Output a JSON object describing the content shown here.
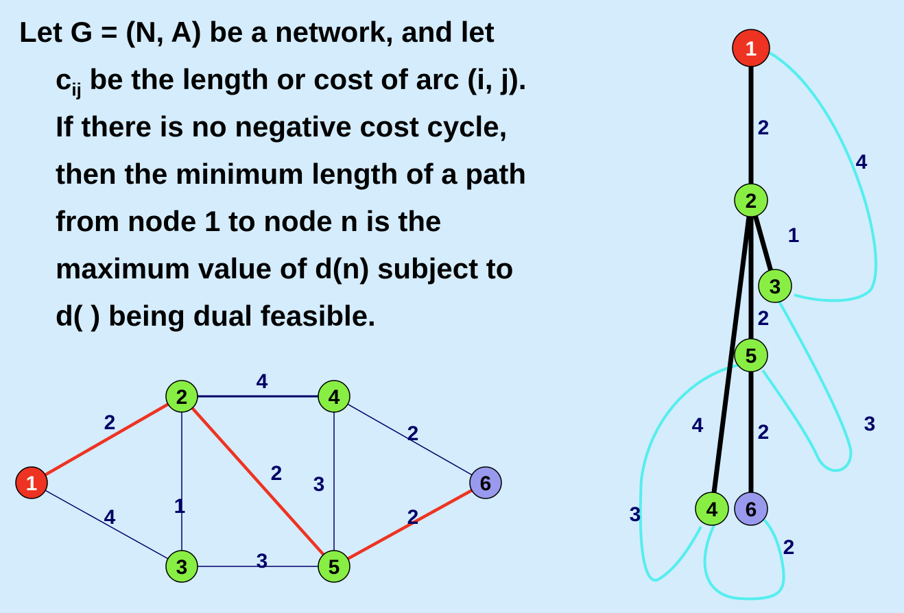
{
  "text": {
    "line1": "Let G = (N, A) be a network, and let",
    "line2_pre": "c",
    "line2_sub": "ij",
    "line2_post": " be the length or cost of arc (i, j).",
    "line3": "If there is no negative cost cycle,",
    "line4": "then the minimum length of a path",
    "line5": "from node 1 to node n is the",
    "line6": "maximum value of d(n) subject to",
    "line7": "d( ) being dual feasible."
  },
  "colors": {
    "background": "#d4ecfc",
    "source_node": "#ee3322",
    "regular_node": "#88ee44",
    "target_node": "#9999ee",
    "red_edge": "#ee3322",
    "blue_edge": "#000066",
    "label": "#000066",
    "tree_edge": "#000000",
    "cyan_edge": "#55eeee"
  },
  "network": {
    "nodes": [
      {
        "id": "1",
        "label": "1",
        "kind": "source"
      },
      {
        "id": "2",
        "label": "2",
        "kind": "regular"
      },
      {
        "id": "3",
        "label": "3",
        "kind": "regular"
      },
      {
        "id": "4",
        "label": "4",
        "kind": "regular"
      },
      {
        "id": "5",
        "label": "5",
        "kind": "regular"
      },
      {
        "id": "6",
        "label": "6",
        "kind": "target"
      }
    ],
    "edges": [
      {
        "from": "1",
        "to": "2",
        "cost": "2",
        "style": "red"
      },
      {
        "from": "1",
        "to": "3",
        "cost": "4",
        "style": "thin"
      },
      {
        "from": "2",
        "to": "3",
        "cost": "1",
        "style": "thin"
      },
      {
        "from": "2",
        "to": "4",
        "cost": "4",
        "style": "blue"
      },
      {
        "from": "2",
        "to": "5",
        "cost": "2",
        "style": "red"
      },
      {
        "from": "3",
        "to": "5",
        "cost": "3",
        "style": "thin"
      },
      {
        "from": "4",
        "to": "5",
        "cost": "3",
        "style": "thin"
      },
      {
        "from": "4",
        "to": "6",
        "cost": "2",
        "style": "thin"
      },
      {
        "from": "5",
        "to": "6",
        "cost": "2",
        "style": "red"
      }
    ]
  },
  "tree": {
    "nodes": [
      {
        "id": "1",
        "label": "1",
        "kind": "source"
      },
      {
        "id": "2",
        "label": "2",
        "kind": "regular"
      },
      {
        "id": "3",
        "label": "3",
        "kind": "regular"
      },
      {
        "id": "5",
        "label": "5",
        "kind": "regular"
      },
      {
        "id": "4",
        "label": "4",
        "kind": "regular"
      },
      {
        "id": "6",
        "label": "6",
        "kind": "target"
      }
    ],
    "tree_edges": [
      {
        "from": "1",
        "to": "2",
        "cost": "2"
      },
      {
        "from": "2",
        "to": "3",
        "cost": "1"
      },
      {
        "from": "2",
        "to": "5",
        "cost": "2"
      },
      {
        "from": "2",
        "to": "4",
        "cost": "4"
      },
      {
        "from": "5",
        "to": "6",
        "cost": "2"
      }
    ],
    "non_tree_edges": [
      {
        "from": "1",
        "to": "3",
        "cost": "4"
      },
      {
        "from": "3",
        "to": "5",
        "cost": "3"
      },
      {
        "from": "5",
        "to": "4",
        "cost": "3"
      },
      {
        "from": "4",
        "to": "6",
        "cost": "2"
      }
    ]
  }
}
